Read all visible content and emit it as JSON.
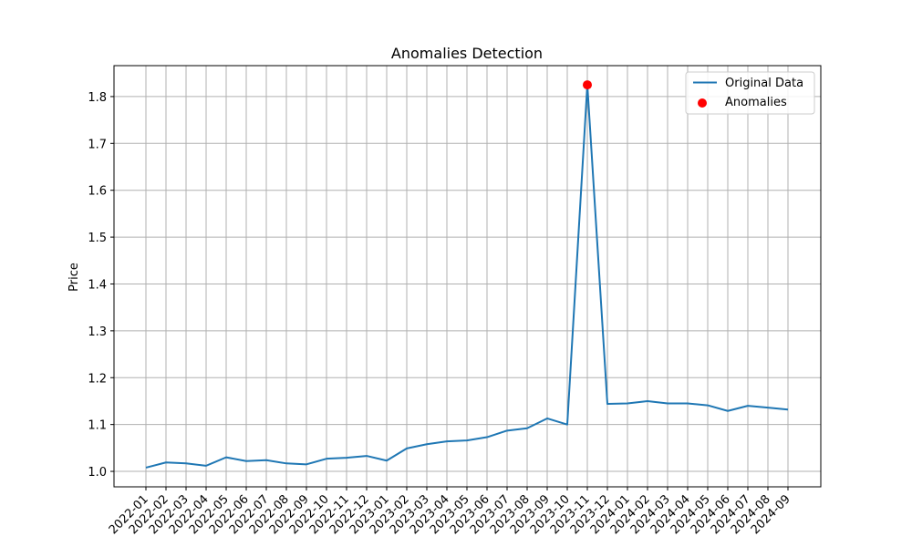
{
  "chart_data": {
    "type": "line",
    "title": "Anomalies Detection",
    "xlabel": "",
    "ylabel": "Price",
    "x": [
      "2022-01",
      "2022-02",
      "2022-03",
      "2022-04",
      "2022-05",
      "2022-06",
      "2022-07",
      "2022-08",
      "2022-09",
      "2022-10",
      "2022-11",
      "2022-12",
      "2023-01",
      "2023-02",
      "2023-03",
      "2023-04",
      "2023-05",
      "2023-06",
      "2023-07",
      "2023-08",
      "2023-09",
      "2023-10",
      "2023-11",
      "2023-12",
      "2024-01",
      "2024-02",
      "2024-03",
      "2024-04",
      "2024-05",
      "2024-06",
      "2024-07",
      "2024-08",
      "2024-09"
    ],
    "series": [
      {
        "name": "Original Data",
        "color": "#1f77b4",
        "values": [
          1.008,
          1.019,
          1.017,
          1.012,
          1.03,
          1.022,
          1.024,
          1.017,
          1.015,
          1.027,
          1.029,
          1.033,
          1.023,
          1.049,
          1.058,
          1.064,
          1.066,
          1.073,
          1.087,
          1.092,
          1.113,
          1.1,
          1.825,
          1.144,
          1.145,
          1.15,
          1.145,
          1.145,
          1.141,
          1.129,
          1.14,
          1.136,
          1.132
        ]
      }
    ],
    "anomalies": {
      "name": "Anomalies",
      "color": "#ff0000",
      "points": [
        {
          "x": "2023-11",
          "y": 1.825
        }
      ]
    },
    "yticks": [
      "1.0",
      "1.1",
      "1.2",
      "1.3",
      "1.4",
      "1.5",
      "1.6",
      "1.7",
      "1.8"
    ],
    "ylim": [
      0.967,
      1.866
    ],
    "grid": true,
    "legend_position": "top-right"
  }
}
